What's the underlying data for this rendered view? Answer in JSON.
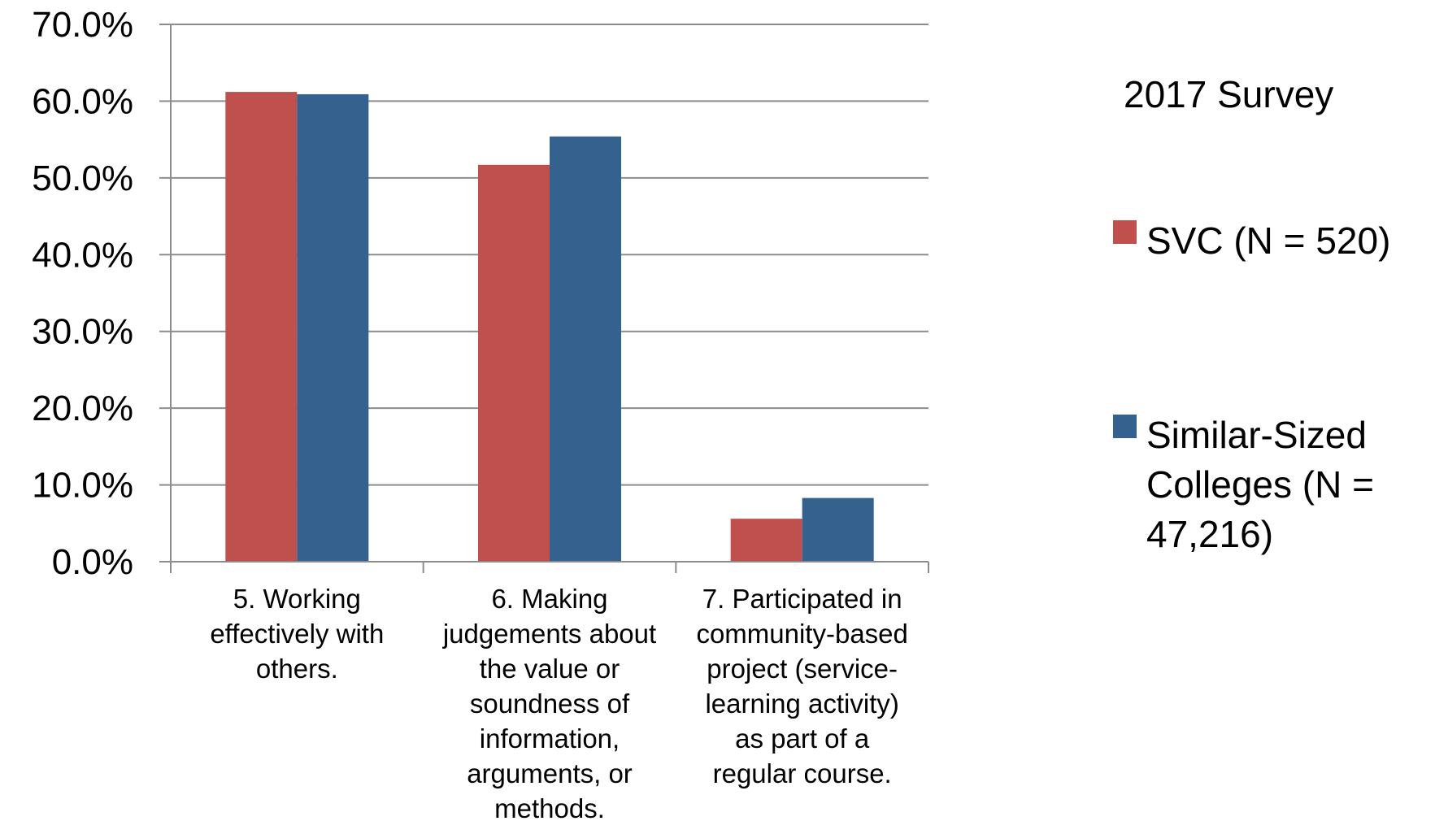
{
  "chart_data": {
    "type": "bar",
    "title": "",
    "xlabel": "",
    "ylabel": "",
    "ylim": [
      0,
      70
    ],
    "y_ticks": [
      "0.0%",
      "10.0%",
      "20.0%",
      "30.0%",
      "40.0%",
      "50.0%",
      "60.0%",
      "70.0%"
    ],
    "grid": true,
    "legend_position": "right",
    "legend_title": "2017 Survey",
    "categories": [
      "5. Working effectively with others.",
      "6. Making judgements about the value or soundness of information, arguments, or methods.",
      "7. Participated in community-based project (service-learning activity) as part of a regular course."
    ],
    "category_lines": [
      [
        "5. Working",
        "effectively with",
        "others."
      ],
      [
        "6. Making",
        "judgements about",
        "the value or",
        "soundness of",
        "information,",
        "arguments, or",
        "methods."
      ],
      [
        "7. Participated in",
        "community-based",
        "project (service-",
        "learning activity)",
        "as part of a",
        "regular course."
      ]
    ],
    "series": [
      {
        "name": "SVC (N = 520)",
        "name_lines": [
          "SVC (N = 520)"
        ],
        "color": "#C0504D",
        "values": [
          61.2,
          51.7,
          5.6
        ]
      },
      {
        "name": "Similar-Sized Colleges (N = 47,216)",
        "name_lines": [
          "Similar-Sized",
          "Colleges (N =",
          "47,216)"
        ],
        "color": "#35618F",
        "values": [
          60.9,
          55.4,
          8.3
        ]
      }
    ]
  }
}
